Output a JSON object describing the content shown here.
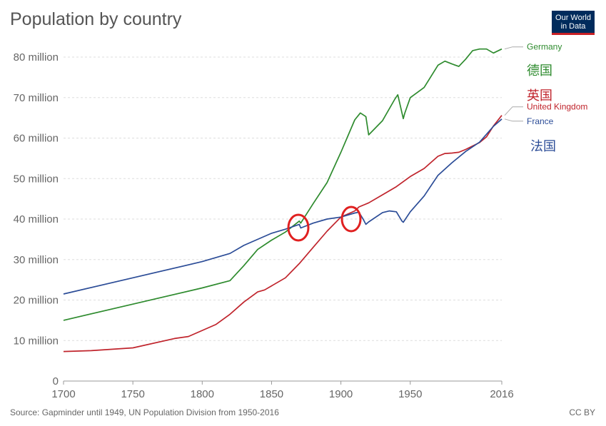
{
  "logo_text": "Our World in Data",
  "chart_data": {
    "type": "line",
    "title": "Population by country",
    "source": "Source: Gapminder until 1949, UN Population Division from 1950-2016",
    "license": "CC BY",
    "xlim": [
      1700,
      2016
    ],
    "ylim": [
      0,
      80000000
    ],
    "x_ticks": [
      "1700",
      "1750",
      "1800",
      "1850",
      "1900",
      "1950",
      "2016"
    ],
    "x_tick_values": [
      1700,
      1750,
      1800,
      1850,
      1900,
      1950,
      2016
    ],
    "y_ticks": [
      "0",
      "10 million",
      "20 million",
      "30 million",
      "40 million",
      "50 million",
      "60 million",
      "70 million",
      "80 million"
    ],
    "y_tick_values": [
      0,
      10000000,
      20000000,
      30000000,
      40000000,
      50000000,
      60000000,
      70000000,
      80000000
    ],
    "grid": true,
    "legend": "inline-right",
    "series": [
      {
        "name": "Germany",
        "annotation": "德国",
        "color": "#2e8b2e",
        "x": [
          1700,
          1750,
          1800,
          1820,
          1830,
          1840,
          1850,
          1860,
          1870,
          1871,
          1880,
          1890,
          1900,
          1910,
          1914,
          1918,
          1920,
          1930,
          1939,
          1941,
          1945,
          1946,
          1950,
          1960,
          1970,
          1975,
          1980,
          1985,
          1990,
          1995,
          2000,
          2005,
          2010,
          2016
        ],
        "y": [
          15000000,
          19000000,
          23000000,
          24800000,
          28500000,
          32500000,
          34800000,
          36800000,
          39500000,
          39000000,
          43800000,
          49000000,
          56500000,
          64500000,
          66200000,
          65300000,
          60800000,
          64300000,
          69700000,
          70700000,
          64800000,
          66100000,
          70000000,
          72500000,
          78000000,
          79000000,
          78300000,
          77700000,
          79500000,
          81600000,
          82000000,
          82000000,
          81000000,
          82000000
        ]
      },
      {
        "name": "United Kingdom",
        "annotation": "英国",
        "color": "#c0242c",
        "x": [
          1700,
          1720,
          1750,
          1780,
          1790,
          1800,
          1810,
          1820,
          1830,
          1840,
          1845,
          1850,
          1860,
          1870,
          1880,
          1890,
          1900,
          1910,
          1913,
          1920,
          1930,
          1940,
          1950,
          1960,
          1970,
          1975,
          1980,
          1985,
          1990,
          2000,
          2005,
          2010,
          2016
        ],
        "y": [
          7300000,
          7500000,
          8200000,
          10500000,
          11000000,
          12500000,
          14000000,
          16500000,
          19500000,
          22000000,
          22500000,
          23500000,
          25500000,
          29000000,
          33000000,
          37000000,
          40500000,
          42000000,
          43000000,
          44000000,
          46000000,
          48000000,
          50500000,
          52500000,
          55500000,
          56200000,
          56300000,
          56500000,
          57200000,
          58900000,
          60300000,
          63000000,
          65600000
        ]
      },
      {
        "name": "France",
        "annotation": "法国",
        "color": "#2b4c97",
        "x": [
          1700,
          1750,
          1800,
          1820,
          1830,
          1850,
          1860,
          1866,
          1870,
          1871,
          1880,
          1890,
          1900,
          1910,
          1913,
          1916,
          1918,
          1920,
          1930,
          1935,
          1940,
          1944,
          1945,
          1950,
          1960,
          1970,
          1980,
          1990,
          2000,
          2010,
          2016
        ],
        "y": [
          21500000,
          25500000,
          29500000,
          31500000,
          33500000,
          36500000,
          37500000,
          38200000,
          38700000,
          37800000,
          39000000,
          40000000,
          40500000,
          41500000,
          41700000,
          40000000,
          38700000,
          39300000,
          41600000,
          42000000,
          41800000,
          39500000,
          39200000,
          41800000,
          45700000,
          50800000,
          53900000,
          56700000,
          59000000,
          62900000,
          64700000
        ]
      }
    ]
  }
}
